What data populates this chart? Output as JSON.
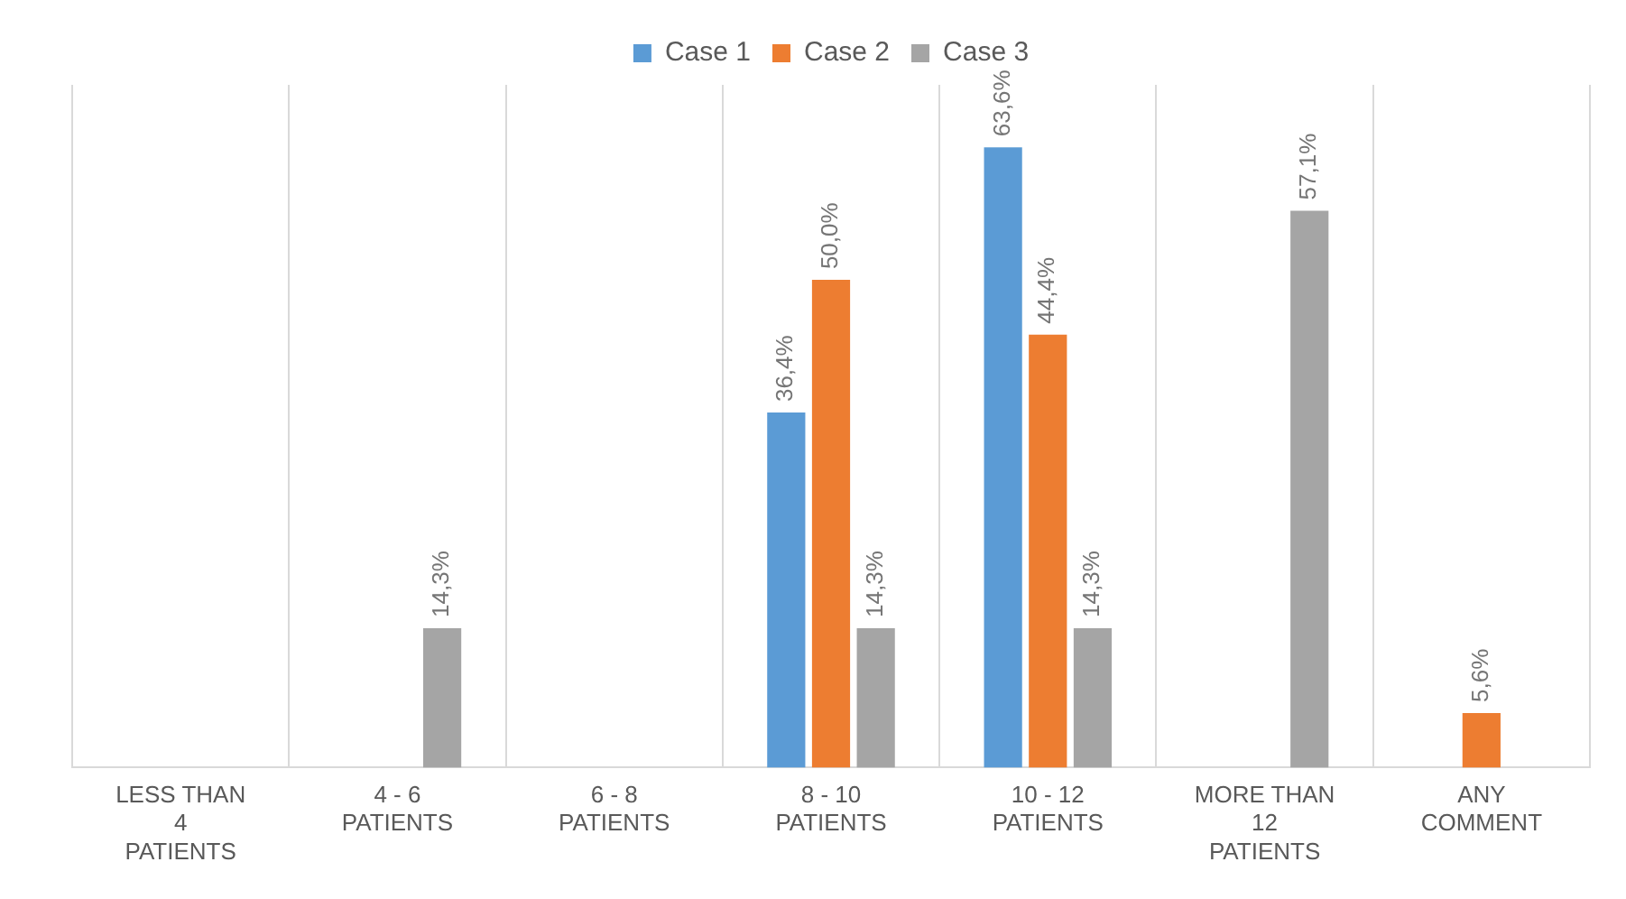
{
  "chart_data": {
    "type": "bar",
    "categories": [
      "LESS THAN 4 PATIENTS",
      "4 - 6 PATIENTS",
      "6 - 8 PATIENTS",
      "8 - 10 PATIENTS",
      "10 - 12 PATIENTS",
      "MORE THAN 12 PATIENTS",
      "ANY COMMENT"
    ],
    "series": [
      {
        "name": "Case 1",
        "color": "#5b9bd5",
        "values": [
          null,
          null,
          null,
          36.4,
          63.6,
          null,
          null
        ],
        "value_labels": [
          null,
          null,
          null,
          "36,4%",
          "63,6%",
          null,
          null
        ]
      },
      {
        "name": "Case 2",
        "color": "#ed7d31",
        "values": [
          null,
          null,
          null,
          50.0,
          44.4,
          null,
          5.6
        ],
        "value_labels": [
          null,
          null,
          null,
          "50,0%",
          "44,4%",
          null,
          "5,6%"
        ]
      },
      {
        "name": "Case 3",
        "color": "#a5a5a5",
        "values": [
          null,
          14.3,
          null,
          14.3,
          14.3,
          57.1,
          null
        ],
        "value_labels": [
          null,
          "14,3%",
          null,
          "14,3%",
          "14,3%",
          "57,1%",
          null
        ]
      }
    ],
    "legend": "top",
    "grid": "x"
  }
}
